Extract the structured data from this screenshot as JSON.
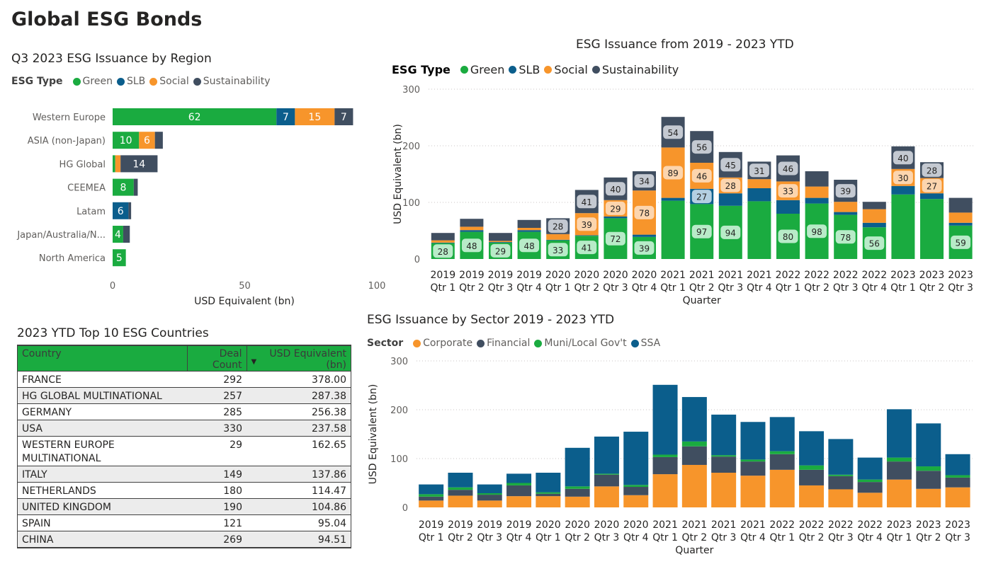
{
  "page": {
    "title": "Global ESG Bonds"
  },
  "colors": {
    "Green": "#1aab40",
    "SLB": "#0b5e8c",
    "Social": "#f7952b",
    "Sustainability": "#404e60",
    "Corporate": "#f7952b",
    "Financial": "#404e60",
    "Muni": "#1aab40",
    "SSA": "#0b5e8c"
  },
  "region_chart": {
    "title": "Q3 2023 ESG Issuance by Region",
    "legend_title": "ESG Type",
    "legend": [
      "Green",
      "SLB",
      "Social",
      "Sustainability"
    ],
    "xlabel": "USD Equivalent (bn)",
    "x_ticks": [
      "0",
      "50",
      "100"
    ]
  },
  "quarterly_chart": {
    "title": "ESG Issuance from 2019 - 2023 YTD",
    "legend_title": "ESG Type",
    "legend": [
      "Green",
      "SLB",
      "Social",
      "Sustainability"
    ],
    "ylabel": "USD Equivalent (bn)",
    "xlabel": "Quarter",
    "y_ticks": [
      "0",
      "100",
      "200",
      "300"
    ]
  },
  "sector_chart": {
    "title": "ESG Issuance by Sector 2019 - 2023 YTD",
    "legend_title": "Sector",
    "legend": [
      "Corporate",
      "Financial",
      "Muni/Local Gov't",
      "SSA"
    ],
    "ylabel": "USD Equivalent (bn)",
    "xlabel": "Quarter",
    "y_ticks": [
      "0",
      "100",
      "200",
      "300"
    ]
  },
  "countries_table": {
    "title": "2023 YTD Top 10 ESG Countries",
    "columns": [
      "Country",
      "Deal Count",
      "USD Equivalent (bn)"
    ],
    "sort_indicator": "▼",
    "rows": [
      [
        "FRANCE",
        "292",
        "378.00"
      ],
      [
        "HG GLOBAL MULTINATIONAL",
        "257",
        "287.38"
      ],
      [
        "GERMANY",
        "285",
        "256.38"
      ],
      [
        "USA",
        "330",
        "237.58"
      ],
      [
        "WESTERN EUROPE MULTINATIONAL",
        "29",
        "162.65"
      ],
      [
        "ITALY",
        "149",
        "137.86"
      ],
      [
        "NETHERLANDS",
        "180",
        "114.47"
      ],
      [
        "UNITED KINGDOM",
        "190",
        "104.86"
      ],
      [
        "SPAIN",
        "121",
        "95.04"
      ],
      [
        "CHINA",
        "269",
        "94.51"
      ]
    ]
  },
  "chart_data": [
    {
      "type": "bar",
      "orientation": "horizontal",
      "stacked": true,
      "title": "Q3 2023 ESG Issuance by Region",
      "xlabel": "USD Equivalent (bn)",
      "xlim": [
        0,
        100
      ],
      "categories": [
        "Western Europe",
        "ASIA (non-Japan)",
        "HG Global",
        "CEEMEA",
        "Latam",
        "Japan/Australia/N...",
        "North America"
      ],
      "series": [
        {
          "name": "Green",
          "values": [
            62,
            10,
            1,
            8,
            0,
            4,
            5
          ]
        },
        {
          "name": "SLB",
          "values": [
            7,
            0,
            0,
            0,
            6,
            0,
            0
          ]
        },
        {
          "name": "Social",
          "values": [
            15,
            6,
            2,
            0,
            0,
            0,
            0
          ]
        },
        {
          "name": "Sustainability",
          "values": [
            7,
            3,
            14,
            1.5,
            1,
            2.5,
            0
          ]
        }
      ],
      "data_labels": [
        [
          "62",
          "10",
          "",
          "8",
          "",
          "4",
          "5"
        ],
        [
          "7",
          "",
          "",
          "",
          "6",
          "",
          ""
        ],
        [
          "15",
          "6",
          "",
          "",
          "",
          "",
          ""
        ],
        [
          "7",
          "",
          "14",
          "",
          "",
          "",
          ""
        ]
      ]
    },
    {
      "type": "bar",
      "stacked": true,
      "title": "ESG Issuance from 2019 - 2023 YTD",
      "xlabel": "Quarter",
      "ylabel": "USD Equivalent (bn)",
      "ylim": [
        0,
        300
      ],
      "categories": [
        "2019 Qtr 1",
        "2019 Qtr 2",
        "2019 Qtr 3",
        "2019 Qtr 4",
        "2020 Qtr 1",
        "2020 Qtr 2",
        "2020 Qtr 3",
        "2020 Qtr 4",
        "2021 Qtr 1",
        "2021 Qtr 2",
        "2021 Qtr 3",
        "2021 Qtr 4",
        "2022 Qtr 1",
        "2022 Qtr 2",
        "2022 Qtr 3",
        "2022 Qtr 4",
        "2023 Qtr 1",
        "2023 Qtr 2",
        "2023 Qtr 3"
      ],
      "series": [
        {
          "name": "Green",
          "values": [
            28,
            48,
            29,
            48,
            33,
            41,
            72,
            39,
            103,
            97,
            94,
            102,
            80,
            98,
            78,
            56,
            114,
            106,
            59
          ]
        },
        {
          "name": "SLB",
          "values": [
            1,
            3,
            1,
            3,
            1,
            1,
            3,
            4,
            5,
            27,
            22,
            23,
            24,
            10,
            5,
            8,
            15,
            10,
            5
          ]
        },
        {
          "name": "Social",
          "values": [
            4,
            6,
            2,
            4,
            10,
            39,
            29,
            78,
            89,
            46,
            28,
            16,
            33,
            20,
            18,
            24,
            30,
            27,
            18
          ]
        },
        {
          "name": "Sustainability",
          "values": [
            13,
            14,
            14,
            14,
            28,
            41,
            40,
            34,
            54,
            56,
            45,
            31,
            46,
            27,
            39,
            13,
            40,
            28,
            26
          ]
        }
      ],
      "data_labels": [
        [
          "28",
          "48",
          "29",
          "48",
          "33",
          "41",
          "72",
          "39",
          "",
          "97",
          "94",
          "",
          "80",
          "98",
          "78",
          "56",
          "",
          "",
          "59"
        ],
        [
          "",
          "",
          "",
          "",
          "",
          "",
          "",
          "",
          "",
          "27",
          "",
          "",
          "",
          "",
          "",
          "",
          "",
          "",
          ""
        ],
        [
          "",
          "",
          "",
          "",
          "",
          "39",
          "29",
          "78",
          "89",
          "46",
          "28",
          "",
          "33",
          "",
          "",
          "",
          "30",
          "27",
          ""
        ],
        [
          "",
          "",
          "",
          "",
          "28",
          "41",
          "40",
          "34",
          "54",
          "56",
          "45",
          "31",
          "46",
          "",
          "39",
          "",
          "40",
          "28",
          ""
        ]
      ]
    },
    {
      "type": "bar",
      "stacked": true,
      "title": "ESG Issuance by Sector 2019 - 2023 YTD",
      "xlabel": "Quarter",
      "ylabel": "USD Equivalent (bn)",
      "ylim": [
        0,
        300
      ],
      "categories": [
        "2019 Qtr 1",
        "2019 Qtr 2",
        "2019 Qtr 3",
        "2019 Qtr 4",
        "2020 Qtr 1",
        "2020 Qtr 2",
        "2020 Qtr 3",
        "2020 Qtr 4",
        "2021 Qtr 1",
        "2021 Qtr 2",
        "2021 Qtr 3",
        "2021 Qtr 4",
        "2022 Qtr 1",
        "2022 Qtr 2",
        "2022 Qtr 3",
        "2022 Qtr 4",
        "2023 Qtr 1",
        "2023 Qtr 2",
        "2023 Qtr 3"
      ],
      "series": [
        {
          "name": "Corporate",
          "values": [
            14,
            24,
            14,
            23,
            23,
            22,
            43,
            25,
            68,
            87,
            71,
            65,
            77,
            45,
            37,
            30,
            57,
            38,
            41
          ]
        },
        {
          "name": "Financial",
          "values": [
            8,
            12,
            12,
            22,
            5,
            16,
            24,
            17,
            35,
            38,
            33,
            29,
            32,
            32,
            27,
            22,
            37,
            37,
            20
          ]
        },
        {
          "name": "Muni/Local Gov't",
          "values": [
            5,
            5,
            3,
            5,
            3,
            5,
            2,
            4,
            5,
            10,
            3,
            4,
            6,
            9,
            3,
            5,
            8,
            9,
            5
          ]
        },
        {
          "name": "SSA",
          "values": [
            20,
            30,
            18,
            19,
            40,
            79,
            76,
            109,
            143,
            91,
            83,
            77,
            70,
            70,
            73,
            45,
            99,
            88,
            43
          ]
        }
      ]
    }
  ],
  "labels": {
    "q_years": [
      "2019",
      "2019",
      "2019",
      "2019",
      "2020",
      "2020",
      "2020",
      "2020",
      "2021",
      "2021",
      "2021",
      "2021",
      "2022",
      "2022",
      "2022",
      "2022",
      "2023",
      "2023",
      "2023"
    ],
    "q_quarters": [
      "Qtr 1",
      "Qtr 2",
      "Qtr 3",
      "Qtr 4",
      "Qtr 1",
      "Qtr 2",
      "Qtr 3",
      "Qtr 4",
      "Qtr 1",
      "Qtr 2",
      "Qtr 3",
      "Qtr 4",
      "Qtr 1",
      "Qtr 2",
      "Qtr 3",
      "Qtr 4",
      "Qtr 1",
      "Qtr 2",
      "Qtr 3"
    ]
  }
}
